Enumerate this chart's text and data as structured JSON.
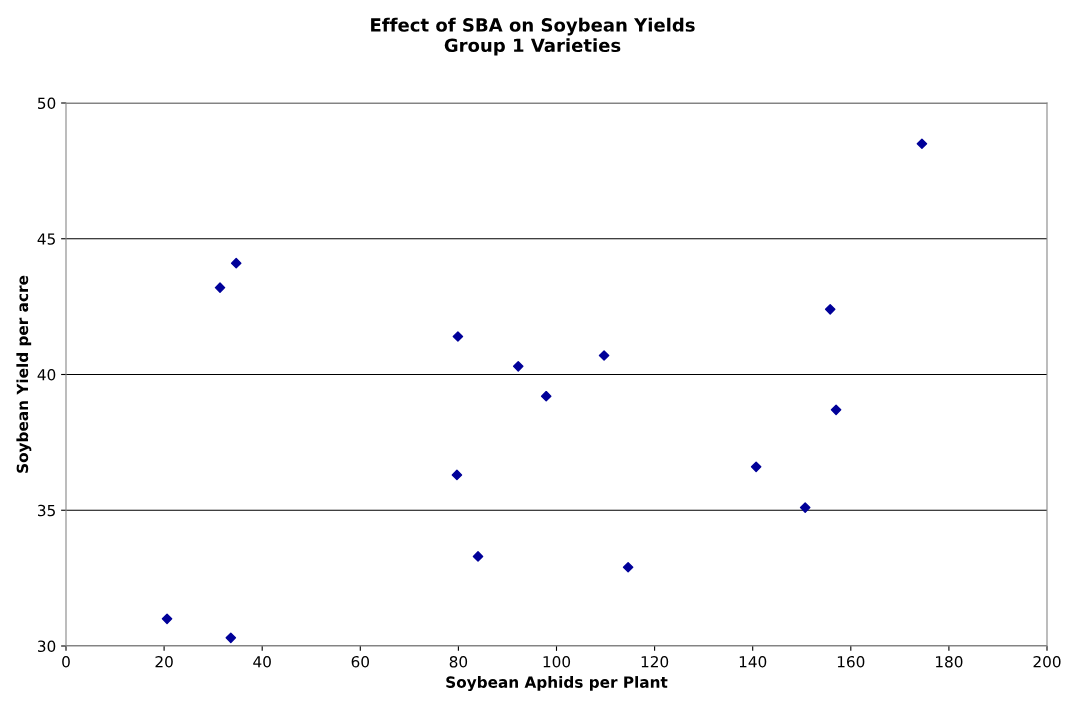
{
  "chart_data": {
    "type": "scatter",
    "title": "Effect of SBA on Soybean Yields\nGroup 1 Varieties",
    "xlabel": "Soybean Aphids per Plant",
    "ylabel": "Soybean Yield per acre",
    "x": [
      20.6,
      33.6,
      31.4,
      34.7,
      79.9,
      79.7,
      84.0,
      92.2,
      97.9,
      109.7,
      114.6,
      140.7,
      150.7,
      155.8,
      157.0,
      174.5
    ],
    "values": [
      31.0,
      30.3,
      43.2,
      44.1,
      41.4,
      36.3,
      33.3,
      40.3,
      39.2,
      40.7,
      32.9,
      36.6,
      35.1,
      42.4,
      38.7,
      48.5
    ],
    "color": "#000099",
    "marker": "diamond",
    "grid": "y",
    "xlim": [
      0,
      200
    ],
    "xticks": [
      0,
      20,
      40,
      60,
      80,
      100,
      120,
      140,
      160,
      180,
      200
    ],
    "ylim": [
      30,
      50
    ],
    "yticks": [
      30,
      35,
      40,
      45,
      50
    ]
  }
}
